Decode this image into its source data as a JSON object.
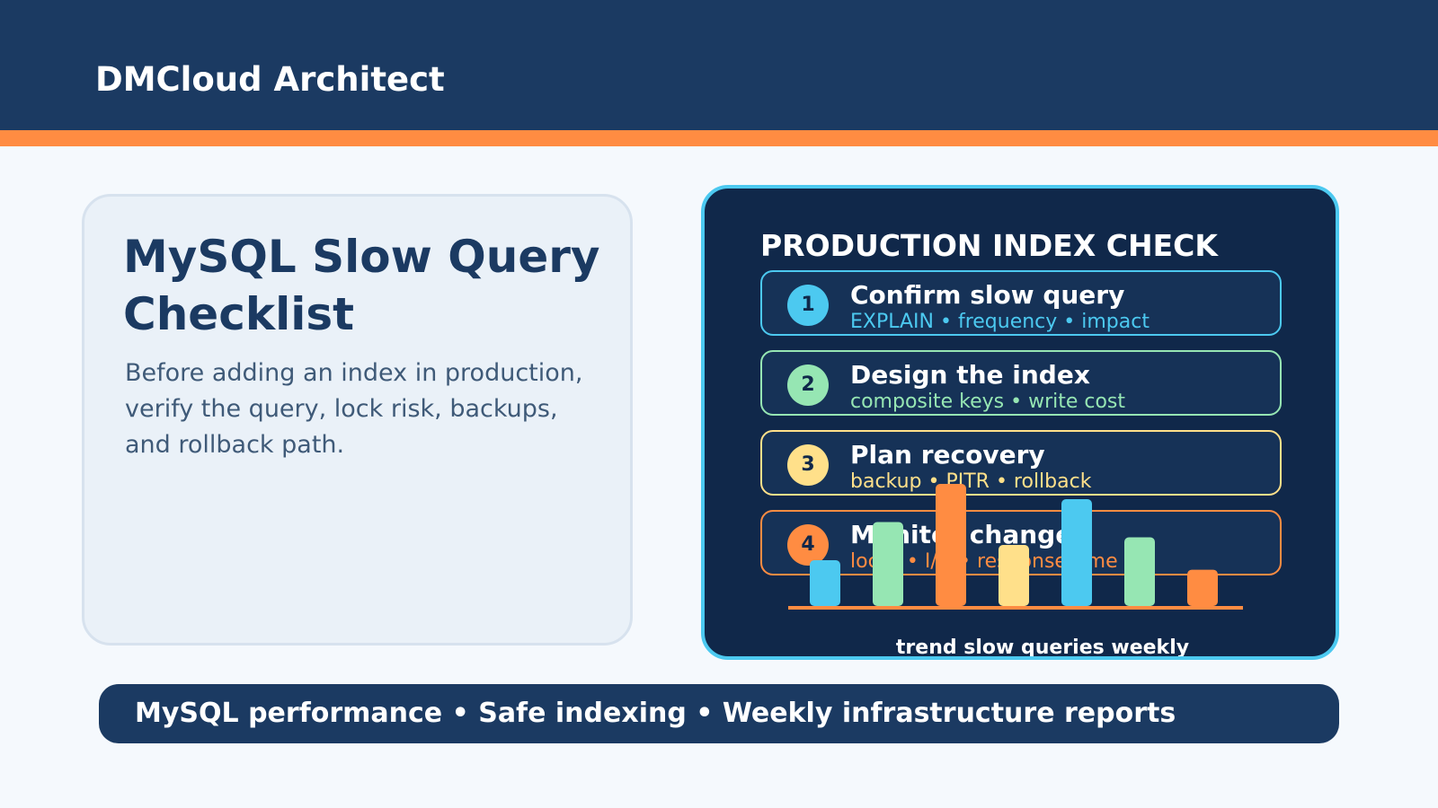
{
  "header": {
    "brand": "DMCloud Architect"
  },
  "colors": {
    "navy": "#1b3a62",
    "accent": "#ff8c42",
    "cyan": "#4cc9f0",
    "green": "#96e6b3",
    "yellow": "#ffe08a",
    "orange": "#ff8c42"
  },
  "intro": {
    "title": "MySQL Slow Query Checklist",
    "description": "Before adding an index in production, verify the query, lock risk, backups, and rollback path."
  },
  "panel": {
    "title": "PRODUCTION INDEX CHECK",
    "steps": [
      {
        "number": "1",
        "name": "Confirm slow query",
        "meta": "EXPLAIN • frequency • impact",
        "color": "#4cc9f0"
      },
      {
        "number": "2",
        "name": "Design the index",
        "meta": "composite keys • write cost",
        "color": "#96e6b3"
      },
      {
        "number": "3",
        "name": "Plan recovery",
        "meta": "backup • PITR • rollback",
        "color": "#ffe08a"
      },
      {
        "number": "4",
        "name": "Monitor change",
        "meta": "locks • I/O • response time",
        "color": "#ff8c42"
      }
    ]
  },
  "chart_data": {
    "type": "bar",
    "title": "trend slow queries weekly",
    "values": [
      24,
      44,
      64,
      32,
      56,
      36,
      19
    ],
    "colors": [
      "#4cc9f0",
      "#96e6b3",
      "#ff8c42",
      "#ffe08a",
      "#4cc9f0",
      "#96e6b3",
      "#ff8c42"
    ],
    "ylim": [
      0,
      64
    ],
    "grid": false
  },
  "footer": {
    "tagline": "MySQL performance • Safe indexing • Weekly infrastructure reports"
  }
}
